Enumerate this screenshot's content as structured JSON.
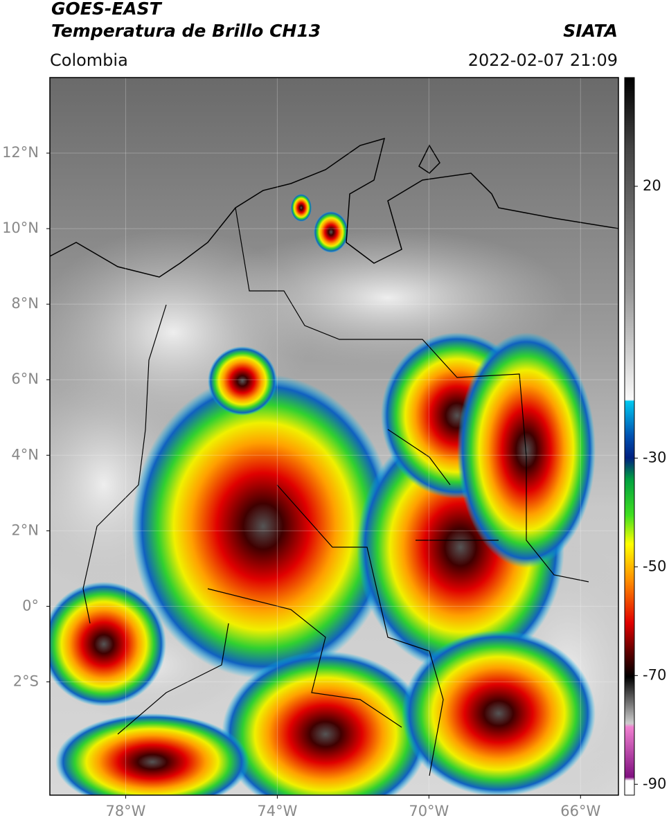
{
  "header": {
    "title": "GOES-EAST",
    "subtitle": "Temperatura de Brillo CH13",
    "source": "SIATA",
    "region": "Colombia",
    "datetime": "2022-02-07 21:09"
  },
  "map": {
    "xlim": [
      -80,
      -65
    ],
    "ylim": [
      -5,
      14
    ],
    "grid": true,
    "xticks": [
      {
        "value": -78,
        "label": "78°W"
      },
      {
        "value": -74,
        "label": "74°W"
      },
      {
        "value": -70,
        "label": "70°W"
      },
      {
        "value": -66,
        "label": "66°W"
      }
    ],
    "yticks": [
      {
        "value": 12,
        "label": "12°N"
      },
      {
        "value": 10,
        "label": "10°N"
      },
      {
        "value": 8,
        "label": "8°N"
      },
      {
        "value": 6,
        "label": "6°N"
      },
      {
        "value": 4,
        "label": "4°N"
      },
      {
        "value": 2,
        "label": "2°N"
      },
      {
        "value": 0,
        "label": "0°"
      },
      {
        "value": -2,
        "label": "2°S"
      }
    ]
  },
  "colorbar": {
    "lim": [
      -92,
      40
    ],
    "ticks": [
      20,
      -30,
      -50,
      -70,
      -90
    ]
  }
}
